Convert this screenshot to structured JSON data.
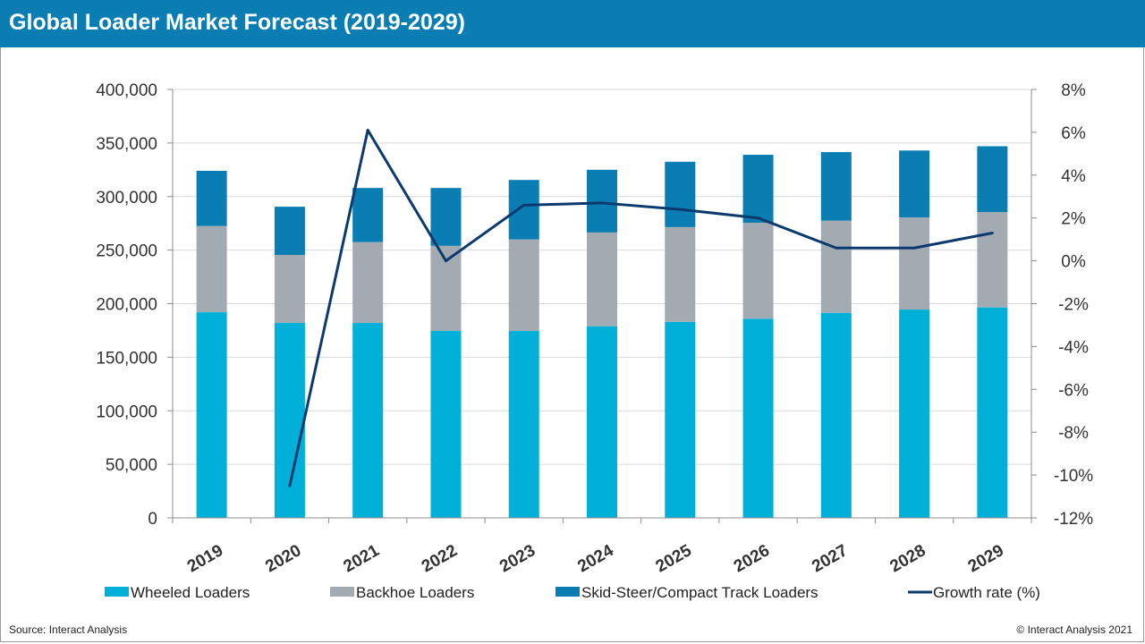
{
  "header": {
    "title": "Global Loader Market Forecast (2019-2029)"
  },
  "footer": {
    "source": "Source: Interact Analysis",
    "copyright": "© Interact Analysis 2021"
  },
  "colors": {
    "header_bg": "#0a7db3",
    "wheeled": "#00b0d8",
    "backhoe": "#a2abb2",
    "skid": "#0a7db3",
    "growth": "#0d3a6e",
    "grid": "#d9d9d9",
    "axis": "#8c8c8c"
  },
  "chart_data": {
    "type": "bar",
    "stacked": true,
    "title": "Global Loader Market Forecast (2019-2029)",
    "categories": [
      "2019",
      "2020",
      "2021",
      "2022",
      "2023",
      "2024",
      "2025",
      "2026",
      "2027",
      "2028",
      "2029"
    ],
    "series": [
      {
        "name": "Wheeled Loaders",
        "color_key": "wheeled",
        "values": [
          192000,
          182000,
          182000,
          174500,
          174500,
          179000,
          183000,
          186000,
          191500,
          194500,
          196500
        ]
      },
      {
        "name": "Backhoe Loaders",
        "color_key": "backhoe",
        "values": [
          80500,
          63500,
          75500,
          79500,
          85500,
          87500,
          88500,
          89500,
          86000,
          86000,
          89000
        ]
      },
      {
        "name": "Skid-Steer/Compact Track Loaders",
        "color_key": "skid",
        "values": [
          51500,
          45000,
          50500,
          54000,
          55500,
          58500,
          61000,
          63500,
          64000,
          62500,
          61500
        ]
      }
    ],
    "line_series": {
      "name": "Growth rate (%)",
      "color_key": "growth",
      "axis": "right",
      "values": [
        null,
        -10.5,
        6.1,
        0.0,
        2.6,
        2.7,
        2.4,
        2.0,
        0.6,
        0.6,
        1.3
      ]
    },
    "y_left": {
      "min": 0,
      "max": 400000,
      "step": 50000,
      "ticks": [
        "0",
        "50,000",
        "100,000",
        "150,000",
        "200,000",
        "250,000",
        "300,000",
        "350,000",
        "400,000"
      ]
    },
    "y_right": {
      "min": -12,
      "max": 8,
      "step": 2,
      "ticks": [
        "-12%",
        "-10%",
        "-8%",
        "-6%",
        "-4%",
        "-2%",
        "0%",
        "2%",
        "4%",
        "6%",
        "8%"
      ]
    },
    "grid": true,
    "legend_position": "bottom"
  }
}
